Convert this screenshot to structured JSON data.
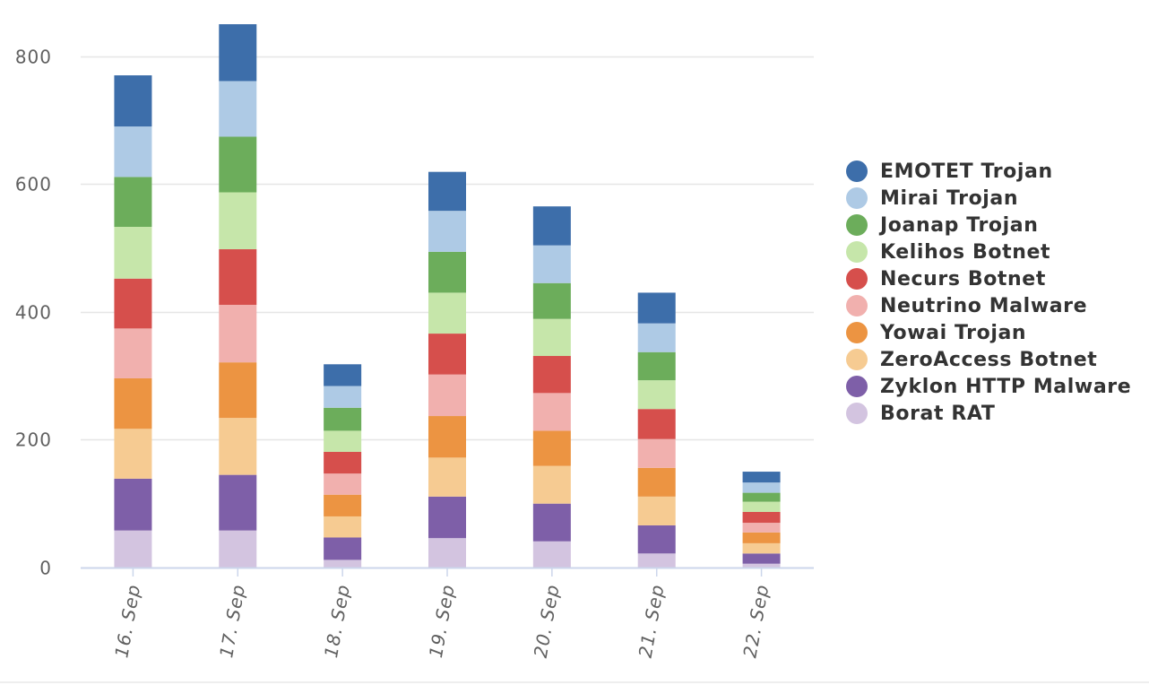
{
  "chart_data": {
    "type": "bar",
    "stacked": true,
    "categories": [
      "16. Sep",
      "17. Sep",
      "18. Sep",
      "19. Sep",
      "20. Sep",
      "21. Sep",
      "22. Sep"
    ],
    "ylim": [
      0,
      850
    ],
    "yticks": [
      0,
      200,
      400,
      600,
      800
    ],
    "grid": true,
    "legend_position": "right",
    "series": [
      {
        "name": "Borat RAT",
        "color": "#d3c4e0",
        "values": [
          58,
          58,
          12,
          46,
          41,
          22,
          6
        ]
      },
      {
        "name": "Zyklon HTTP Malware",
        "color": "#7e5fa8",
        "values": [
          81,
          87,
          35,
          65,
          59,
          44,
          16
        ]
      },
      {
        "name": "ZeroAccess Botnet",
        "color": "#f6cb92",
        "values": [
          78,
          89,
          33,
          61,
          59,
          45,
          16
        ]
      },
      {
        "name": "Yowai Trojan",
        "color": "#ec9442",
        "values": [
          79,
          87,
          34,
          65,
          55,
          45,
          17
        ]
      },
      {
        "name": "Neutrino Malware",
        "color": "#f1b0ae",
        "values": [
          78,
          90,
          33,
          65,
          59,
          45,
          15
        ]
      },
      {
        "name": "Necurs Botnet",
        "color": "#d64f4c",
        "values": [
          78,
          87,
          34,
          64,
          58,
          47,
          17
        ]
      },
      {
        "name": "Kelihos Botnet",
        "color": "#c6e6aa",
        "values": [
          81,
          89,
          33,
          64,
          58,
          45,
          16
        ]
      },
      {
        "name": "Joanap Trojan",
        "color": "#6cad5b",
        "values": [
          78,
          87,
          36,
          64,
          56,
          44,
          14
        ]
      },
      {
        "name": "Mirai Trojan",
        "color": "#aecae5",
        "values": [
          79,
          87,
          34,
          64,
          59,
          45,
          16
        ]
      },
      {
        "name": "EMOTET Trojan",
        "color": "#3d6eaa",
        "values": [
          80,
          89,
          34,
          61,
          61,
          48,
          17
        ]
      }
    ]
  },
  "legend_order": [
    9,
    8,
    7,
    6,
    5,
    4,
    3,
    2,
    1,
    0
  ]
}
